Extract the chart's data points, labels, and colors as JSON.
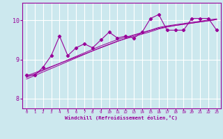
{
  "x": [
    0,
    1,
    2,
    3,
    4,
    5,
    6,
    7,
    8,
    9,
    10,
    11,
    12,
    13,
    14,
    15,
    16,
    17,
    18,
    19,
    20,
    21,
    22,
    23
  ],
  "y_main": [
    8.6,
    8.6,
    8.8,
    9.1,
    9.6,
    9.1,
    9.3,
    9.4,
    9.3,
    9.5,
    9.7,
    9.55,
    9.6,
    9.55,
    9.7,
    10.05,
    10.15,
    9.75,
    9.75,
    9.75,
    10.05,
    10.05,
    10.05,
    9.75
  ],
  "y_line1": [
    8.58,
    8.66,
    8.74,
    8.82,
    8.9,
    8.98,
    9.06,
    9.14,
    9.22,
    9.3,
    9.38,
    9.46,
    9.54,
    9.62,
    9.68,
    9.74,
    9.8,
    9.84,
    9.87,
    9.9,
    9.93,
    9.96,
    9.99,
    10.02
  ],
  "y_line2": [
    8.54,
    8.63,
    8.72,
    8.81,
    8.9,
    8.99,
    9.08,
    9.17,
    9.26,
    9.35,
    9.43,
    9.51,
    9.57,
    9.63,
    9.69,
    9.75,
    9.82,
    9.86,
    9.89,
    9.92,
    9.95,
    9.98,
    10.01,
    10.04
  ],
  "y_line3": [
    8.5,
    8.59,
    8.68,
    8.77,
    8.86,
    8.95,
    9.04,
    9.13,
    9.22,
    9.31,
    9.39,
    9.47,
    9.53,
    9.59,
    9.65,
    9.71,
    9.78,
    9.83,
    9.87,
    9.9,
    9.93,
    9.96,
    9.99,
    10.02
  ],
  "line_color": "#990099",
  "bg_color": "#cce8ee",
  "grid_color": "#ffffff",
  "ylabel_vals": [
    8,
    9,
    10
  ],
  "ylim": [
    7.75,
    10.45
  ],
  "xlim": [
    -0.5,
    23.5
  ],
  "xlabel": "Windchill (Refroidissement éolien,°C)",
  "xtick_labels": [
    "0",
    "1",
    "2",
    "3",
    "4",
    "5",
    "6",
    "7",
    "8",
    "9",
    "10",
    "11",
    "12",
    "13",
    "14",
    "15",
    "16",
    "17",
    "18",
    "19",
    "20",
    "21",
    "22",
    "23"
  ]
}
